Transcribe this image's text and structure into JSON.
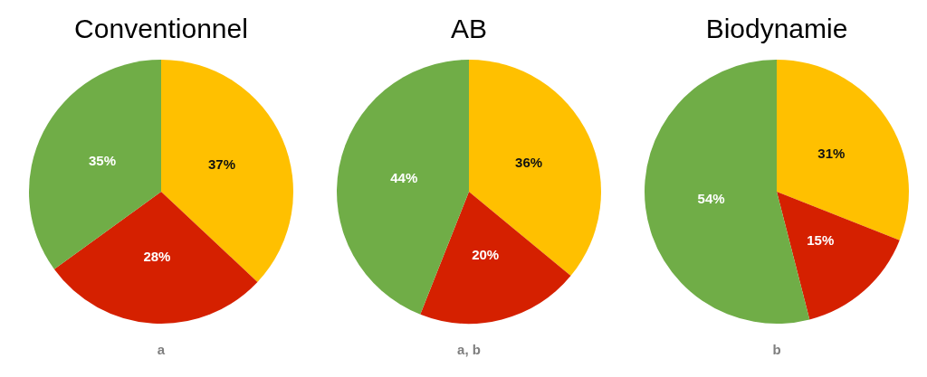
{
  "chart_data": [
    {
      "type": "pie",
      "title": "Conventionnel",
      "categories": [
        null,
        null,
        null
      ],
      "values": [
        37,
        28,
        35
      ],
      "colors": [
        "#ffc000",
        "#d52000",
        "#70ad47"
      ],
      "value_labels": [
        "37%",
        "28%",
        "35%"
      ],
      "annotations": [
        "a"
      ]
    },
    {
      "type": "pie",
      "title": "AB",
      "categories": [
        null,
        null,
        null
      ],
      "values": [
        36,
        20,
        44
      ],
      "colors": [
        "#ffc000",
        "#d52000",
        "#70ad47"
      ],
      "value_labels": [
        "36%",
        "20%",
        "44%"
      ],
      "annotations": [
        "a, b"
      ]
    },
    {
      "type": "pie",
      "title": "Biodynamie",
      "categories": [
        null,
        null,
        null
      ],
      "values": [
        31,
        15,
        54
      ],
      "colors": [
        "#ffc000",
        "#d52000",
        "#70ad47"
      ],
      "value_labels": [
        "31%",
        "15%",
        "54%"
      ],
      "annotations": [
        "b"
      ]
    }
  ]
}
